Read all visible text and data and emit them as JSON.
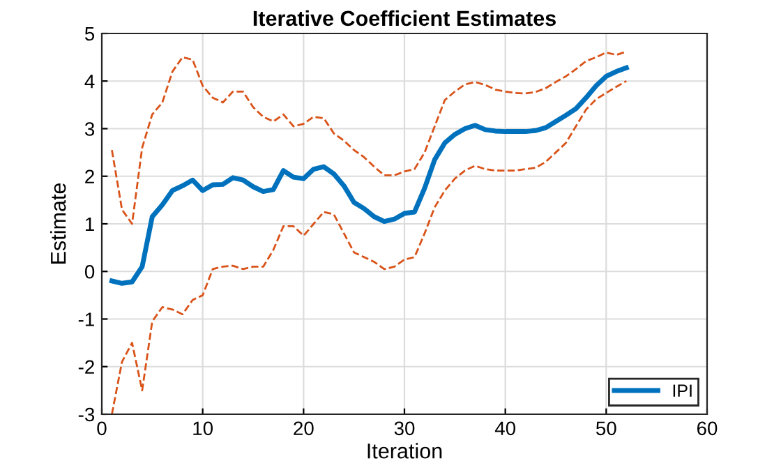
{
  "chart_data": {
    "type": "line",
    "title": "Iterative Coefficient Estimates",
    "xlabel": "Iteration",
    "ylabel": "Estimate",
    "x": [
      1,
      2,
      3,
      4,
      5,
      6,
      7,
      8,
      9,
      10,
      11,
      12,
      13,
      14,
      15,
      16,
      17,
      18,
      19,
      20,
      21,
      22,
      23,
      24,
      25,
      26,
      27,
      28,
      29,
      30,
      31,
      32,
      33,
      34,
      35,
      36,
      37,
      38,
      39,
      40,
      41,
      42,
      43,
      44,
      45,
      46,
      47,
      48,
      49,
      50,
      51,
      52
    ],
    "series": [
      {
        "name": "IPI",
        "color": "#0072bd",
        "line_style": "solid",
        "values": [
          -0.2,
          -0.25,
          -0.22,
          0.1,
          1.15,
          1.4,
          1.7,
          1.8,
          1.92,
          1.7,
          1.82,
          1.83,
          1.97,
          1.92,
          1.78,
          1.68,
          1.72,
          2.12,
          1.98,
          1.95,
          2.15,
          2.2,
          2.05,
          1.8,
          1.45,
          1.32,
          1.15,
          1.05,
          1.1,
          1.22,
          1.25,
          1.75,
          2.35,
          2.7,
          2.88,
          3.0,
          3.07,
          2.98,
          2.95,
          2.94,
          2.94,
          2.94,
          2.96,
          3.02,
          3.15,
          3.28,
          3.42,
          3.65,
          3.9,
          4.1,
          4.2,
          4.28
        ]
      },
      {
        "color": "#d95319",
        "line_style": "dashed",
        "values": [
          2.55,
          1.3,
          1.0,
          2.6,
          3.3,
          3.55,
          4.2,
          4.5,
          4.45,
          3.9,
          3.65,
          3.55,
          3.78,
          3.78,
          3.45,
          3.25,
          3.15,
          3.3,
          3.05,
          3.1,
          3.25,
          3.22,
          2.9,
          2.75,
          2.55,
          2.4,
          2.2,
          2.02,
          2.02,
          2.1,
          2.15,
          2.5,
          3.05,
          3.6,
          3.78,
          3.93,
          3.98,
          3.92,
          3.82,
          3.78,
          3.75,
          3.74,
          3.77,
          3.85,
          3.98,
          4.1,
          4.25,
          4.42,
          4.5,
          4.6,
          4.55,
          4.62
        ]
      },
      {
        "color": "#d95319",
        "line_style": "dashed",
        "values": [
          -3.0,
          -1.9,
          -1.5,
          -2.5,
          -1.05,
          -0.75,
          -0.8,
          -0.9,
          -0.6,
          -0.5,
          0.05,
          0.1,
          0.12,
          0.05,
          0.1,
          0.1,
          0.45,
          0.95,
          0.95,
          0.75,
          1.0,
          1.25,
          1.2,
          0.8,
          0.4,
          0.3,
          0.2,
          0.05,
          0.1,
          0.25,
          0.3,
          0.8,
          1.35,
          1.7,
          1.95,
          2.12,
          2.22,
          2.15,
          2.12,
          2.12,
          2.12,
          2.15,
          2.18,
          2.3,
          2.5,
          2.7,
          3.05,
          3.4,
          3.62,
          3.75,
          3.88,
          4.0
        ]
      }
    ],
    "xlim": [
      0,
      60
    ],
    "xticks": [
      0,
      10,
      20,
      30,
      40,
      50,
      60
    ],
    "ylim": [
      -3,
      5
    ],
    "yticks": [
      -3,
      -2,
      -1,
      0,
      1,
      2,
      3,
      4,
      5
    ],
    "grid": true,
    "legend": "bottom right"
  }
}
